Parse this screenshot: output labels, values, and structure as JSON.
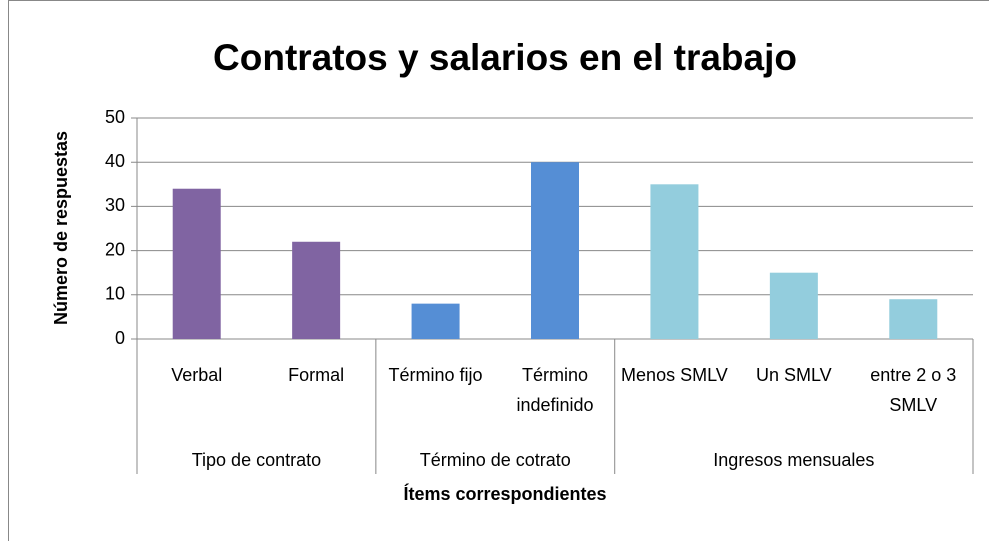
{
  "chart_data": {
    "type": "bar",
    "title": "Contratos y salarios en el trabajo",
    "x_label": "Ítems correspondientes",
    "y_label": "Número de respuestas",
    "ylim": [
      0,
      50
    ],
    "yticks": [
      0,
      10,
      20,
      30,
      40,
      50
    ],
    "grid": true,
    "groups": [
      {
        "name": "Tipo de contrato",
        "color": "#8064a2",
        "categories": [
          "Verbal",
          "Formal"
        ],
        "values": [
          34,
          22
        ]
      },
      {
        "name": "Término de cotrato",
        "color": "#558ed5",
        "categories": [
          "Término fijo",
          "Término indefinido"
        ],
        "values": [
          8,
          40
        ]
      },
      {
        "name": "Ingresos mensuales",
        "color": "#93cddd",
        "categories": [
          "Menos SMLV",
          "Un SMLV",
          "entre 2 o 3 SMLV"
        ],
        "values": [
          35,
          15,
          9
        ]
      }
    ]
  }
}
